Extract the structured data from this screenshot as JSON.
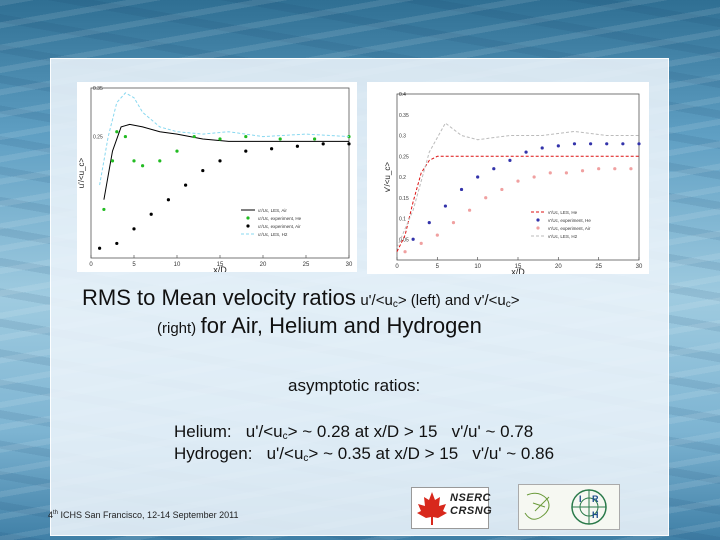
{
  "heading": {
    "title_part1": "RMS to Mean velocity ratios",
    "title_part2": "u'/<u",
    "sub_c1": "c",
    "title_part3": "> (left) and v'/<u",
    "sub_c2": "c",
    "title_part4": ">",
    "line2_small": "(right)",
    "line2_big": "for Air, Helium and Hydrogen"
  },
  "asymptotic_label": "asymptotic ratios:",
  "ratios": {
    "helium_a": "Helium:   u'/<u",
    "helium_sub": "c",
    "helium_b": "> ~ 0.28 at x/D > 15   v'/u' ~ 0.78",
    "hydrogen_a": "Hydrogen:   u'/<u",
    "hydrogen_sub": "c",
    "hydrogen_b": "> ~ 0.35 at x/D > 15   v'/u' ~ 0.86"
  },
  "footer": {
    "sup": "th",
    "prefix": "4",
    "text": " ICHS  San Francisco, 12-14 September 2011"
  },
  "logos": {
    "nserc_line1": "NSERC",
    "nserc_line2": "CRSNG",
    "irh_letters": [
      "I",
      "R",
      "H"
    ]
  },
  "colors": {
    "air": "#000000",
    "helium": "#22bb22",
    "hydrogen_les": "#88d8f0",
    "vprime_les_he": "#dd1111",
    "vprime_exp_he": "#3333aa",
    "vprime_exp_air": "#f0a0a0",
    "vprime_les_h2": "#bbbbbb"
  },
  "chart_data": [
    {
      "type": "line",
      "xlabel": "x/D",
      "ylabel": "u'/<u_c>",
      "xlim": [
        0,
        30
      ],
      "ylim": [
        0,
        0.35
      ],
      "xticks": [
        "0",
        "5",
        "10",
        "15",
        "20",
        "25",
        "30"
      ],
      "yticks": [
        "0.25",
        "0.35"
      ],
      "legend_position": "bottom-right",
      "series": [
        {
          "name": "u'/Uc, LES, Air",
          "style": "line",
          "color_key": "air",
          "x": [
            1.5,
            2.5,
            3.5,
            4.5,
            6,
            8,
            10,
            13,
            16,
            20,
            25,
            30
          ],
          "y": [
            0.12,
            0.22,
            0.27,
            0.275,
            0.27,
            0.26,
            0.255,
            0.245,
            0.24,
            0.24,
            0.24,
            0.24
          ]
        },
        {
          "name": "u'/Uc, experiment, He",
          "style": "points",
          "color_key": "helium",
          "x": [
            1.5,
            2.5,
            3,
            4,
            5,
            6,
            8,
            10,
            12,
            15,
            18,
            22,
            26,
            30
          ],
          "y": [
            0.1,
            0.2,
            0.26,
            0.25,
            0.2,
            0.19,
            0.2,
            0.22,
            0.25,
            0.245,
            0.25,
            0.245,
            0.245,
            0.25
          ]
        },
        {
          "name": "u'/Uc, experiment, Air",
          "style": "points",
          "color_key": "air",
          "x": [
            1,
            3,
            5,
            7,
            9,
            11,
            13,
            15,
            18,
            21,
            24,
            27,
            30
          ],
          "y": [
            0.02,
            0.03,
            0.06,
            0.09,
            0.12,
            0.15,
            0.18,
            0.2,
            0.22,
            0.225,
            0.23,
            0.235,
            0.235
          ]
        },
        {
          "name": "u'/Uc, LES, H2",
          "style": "dashed",
          "color_key": "hydrogen_les",
          "x": [
            1,
            2,
            3,
            4,
            5,
            6,
            8,
            10,
            13,
            16,
            20,
            25,
            30
          ],
          "y": [
            0.15,
            0.25,
            0.32,
            0.34,
            0.33,
            0.3,
            0.27,
            0.26,
            0.255,
            0.26,
            0.25,
            0.255,
            0.25
          ]
        }
      ]
    },
    {
      "type": "line",
      "xlabel": "x/D",
      "ylabel": "v'/<u_c>",
      "xlim": [
        0,
        30
      ],
      "ylim": [
        0,
        0.4
      ],
      "xticks": [
        "0",
        "5",
        "10",
        "15",
        "20",
        "25",
        "30"
      ],
      "yticks": [
        "0.4",
        "0.35",
        "0.3",
        "0.25",
        "0.2",
        "0.15",
        "0.1",
        "0.05"
      ],
      "legend_position": "bottom-right",
      "series": [
        {
          "name": "v'/Uc, LES, He",
          "style": "dashed",
          "color_key": "vprime_les_he",
          "x": [
            0,
            1,
            2,
            3,
            4,
            5,
            7,
            10,
            15,
            20,
            25,
            30
          ],
          "y": [
            0.02,
            0.06,
            0.14,
            0.21,
            0.24,
            0.25,
            0.25,
            0.25,
            0.25,
            0.25,
            0.25,
            0.25
          ]
        },
        {
          "name": "v'/Uc, experiment, He",
          "style": "points",
          "color_key": "vprime_exp_he",
          "x": [
            2,
            4,
            6,
            8,
            10,
            12,
            14,
            16,
            18,
            20,
            22,
            24,
            26,
            28,
            30
          ],
          "y": [
            0.05,
            0.09,
            0.13,
            0.17,
            0.2,
            0.22,
            0.24,
            0.26,
            0.27,
            0.275,
            0.28,
            0.28,
            0.28,
            0.28,
            0.28
          ]
        },
        {
          "name": "v'/Uc, experiment, Air",
          "style": "points",
          "color_key": "vprime_exp_air",
          "x": [
            1,
            3,
            5,
            7,
            9,
            11,
            13,
            15,
            17,
            19,
            21,
            23,
            25,
            27,
            29
          ],
          "y": [
            0.02,
            0.04,
            0.06,
            0.09,
            0.12,
            0.15,
            0.17,
            0.19,
            0.2,
            0.21,
            0.21,
            0.215,
            0.22,
            0.22,
            0.22
          ]
        },
        {
          "name": "v'/Uc, LES, H2",
          "style": "dashed",
          "color_key": "vprime_les_h2",
          "x": [
            0,
            2,
            4,
            6,
            8,
            10,
            14,
            18,
            22,
            26,
            30
          ],
          "y": [
            0.03,
            0.12,
            0.26,
            0.33,
            0.3,
            0.29,
            0.3,
            0.3,
            0.31,
            0.3,
            0.3
          ]
        }
      ]
    }
  ]
}
